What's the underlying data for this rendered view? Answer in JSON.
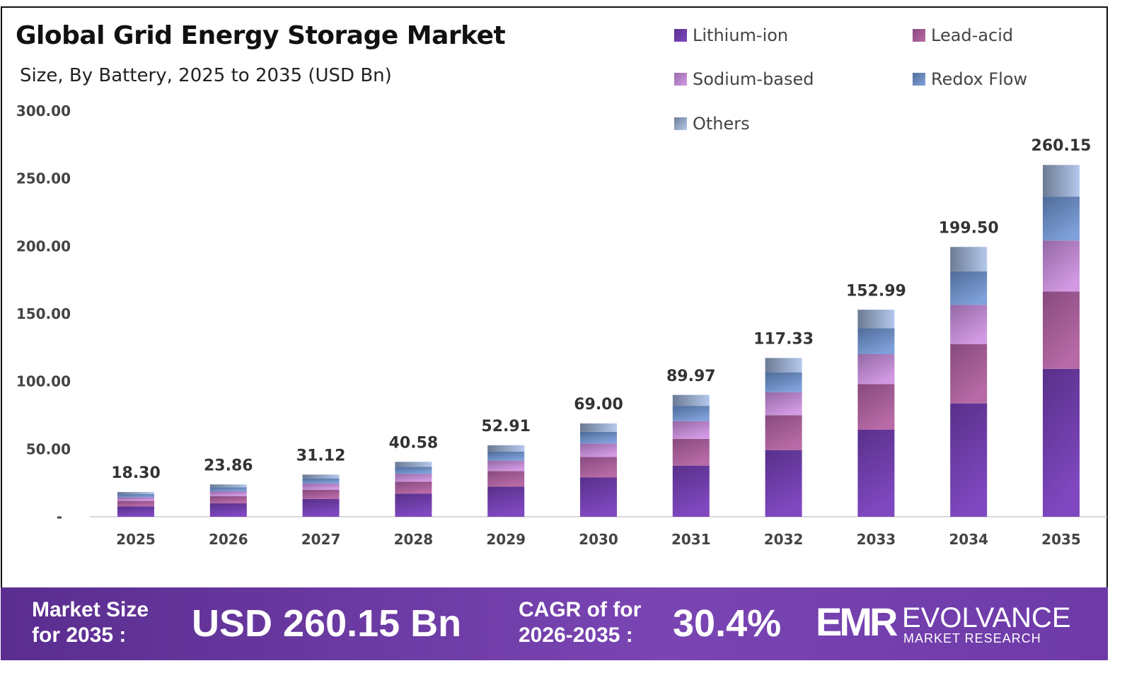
{
  "chart_data": {
    "type": "bar",
    "stacked": true,
    "title": "Global Grid Energy Storage Market",
    "subtitle": "Size, By Battery, 2025 to 2035 (USD Bn)",
    "categories": [
      "2025",
      "2026",
      "2027",
      "2028",
      "2029",
      "2030",
      "2031",
      "2032",
      "2033",
      "2034",
      "2035"
    ],
    "totals": [
      "18.30",
      "23.86",
      "31.12",
      "40.58",
      "52.91",
      "69.00",
      "89.97",
      "117.33",
      "152.99",
      "199.50",
      "260.15"
    ],
    "series": [
      {
        "name": "Lithium-ion",
        "color": "#6a3ca8",
        "values": [
          7.7,
          10.0,
          13.1,
          17.0,
          22.2,
          29.0,
          37.8,
          49.3,
          64.3,
          83.8,
          109.3
        ]
      },
      {
        "name": "Lead-acid",
        "color": "#a35a95",
        "values": [
          4.0,
          5.3,
          6.9,
          8.9,
          11.6,
          15.2,
          19.8,
          25.8,
          33.7,
          43.9,
          57.2
        ]
      },
      {
        "name": "Sodium-based",
        "color": "#bb8ad0",
        "values": [
          2.7,
          3.5,
          4.5,
          5.9,
          7.7,
          10.0,
          13.1,
          17.0,
          22.2,
          28.9,
          37.7
        ]
      },
      {
        "name": "Redox Flow",
        "color": "#6e8fc4",
        "values": [
          2.3,
          3.0,
          3.9,
          5.1,
          6.6,
          8.6,
          11.3,
          14.7,
          19.1,
          24.9,
          32.5
        ]
      },
      {
        "name": "Others",
        "color": "#93a6cc",
        "values": [
          1.6,
          2.1,
          2.8,
          3.7,
          4.8,
          6.2,
          8.1,
          10.6,
          13.8,
          18.0,
          23.4
        ]
      }
    ],
    "y_ticks": [
      "-",
      "50.00",
      "100.00",
      "150.00",
      "200.00",
      "250.00",
      "300.00"
    ],
    "ylim": [
      0,
      300
    ],
    "grid": false,
    "legend_position": "top-right"
  },
  "footer": {
    "market_label_1": "Market Size",
    "market_label_2": "for 2035 :",
    "market_value": "USD 260.15 Bn",
    "cagr_label_1": "CAGR of for",
    "cagr_label_2": "2026-2035 :",
    "cagr_value": "30.4%",
    "brand_name": "EVOLVANCE",
    "brand_sub": "MARKET RESEARCH",
    "brand_mark": "EMR"
  }
}
